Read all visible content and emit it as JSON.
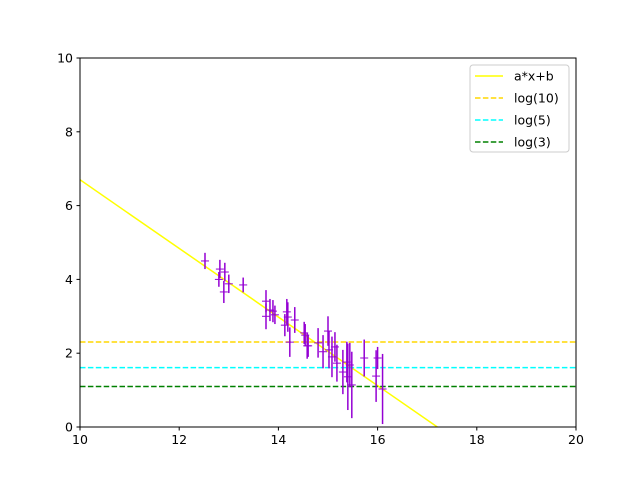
{
  "chart_data": {
    "type": "scatter",
    "title": "",
    "xlabel": "",
    "ylabel": "",
    "xlim": [
      10,
      20
    ],
    "ylim": [
      0,
      10
    ],
    "xticks": [
      "10",
      "12",
      "14",
      "16",
      "18",
      "20"
    ],
    "yticks": [
      "0",
      "2",
      "4",
      "6",
      "8",
      "10"
    ],
    "grid": false,
    "legend_position": "top-right",
    "lines": [
      {
        "name": "a*x+b",
        "kind": "linear",
        "a": -0.93,
        "b": 16.0,
        "color": "#ffff00",
        "style": "solid"
      },
      {
        "name": "log(10)",
        "kind": "hline",
        "y": 2.303,
        "color": "#ffd700",
        "style": "dashed"
      },
      {
        "name": "log(5)",
        "kind": "hline",
        "y": 1.609,
        "color": "#00ffff",
        "style": "dashed"
      },
      {
        "name": "log(3)",
        "kind": "hline",
        "y": 1.099,
        "color": "#008000",
        "style": "dashed"
      }
    ],
    "points": {
      "color": "#9400d3",
      "data": [
        [
          12.52,
          4.5,
          0.22
        ],
        [
          12.82,
          4.28,
          0.25
        ],
        [
          12.8,
          4.0,
          0.2
        ],
        [
          12.92,
          4.2,
          0.25
        ],
        [
          12.9,
          3.66,
          0.3
        ],
        [
          13.0,
          3.88,
          0.25
        ],
        [
          13.29,
          3.85,
          0.2
        ],
        [
          13.75,
          3.41,
          0.3
        ],
        [
          13.75,
          3.0,
          0.35
        ],
        [
          13.83,
          3.17,
          0.3
        ],
        [
          13.89,
          3.14,
          0.3
        ],
        [
          13.93,
          3.04,
          0.25
        ],
        [
          14.17,
          3.12,
          0.35
        ],
        [
          14.13,
          2.76,
          0.3
        ],
        [
          14.19,
          2.98,
          0.4
        ],
        [
          14.23,
          2.3,
          0.4
        ],
        [
          14.33,
          2.9,
          0.35
        ],
        [
          14.54,
          2.49,
          0.3
        ],
        [
          14.58,
          2.2,
          0.35
        ],
        [
          14.52,
          2.55,
          0.3
        ],
        [
          14.6,
          2.2,
          0.3
        ],
        [
          14.8,
          2.28,
          0.4
        ],
        [
          14.9,
          2.04,
          0.45
        ],
        [
          15.0,
          2.6,
          0.4
        ],
        [
          15.02,
          2.09,
          0.5
        ],
        [
          15.08,
          1.9,
          0.55
        ],
        [
          15.14,
          2.17,
          0.4
        ],
        [
          15.18,
          1.73,
          0.5
        ],
        [
          15.3,
          1.49,
          0.6
        ],
        [
          15.38,
          1.76,
          0.55
        ],
        [
          15.4,
          1.36,
          0.9
        ],
        [
          15.44,
          1.68,
          0.6
        ],
        [
          15.48,
          1.14,
          0.9
        ],
        [
          15.73,
          1.87,
          0.5
        ],
        [
          15.97,
          1.38,
          0.7
        ],
        [
          16.0,
          1.87,
          0.3
        ],
        [
          16.1,
          1.03,
          0.95
        ]
      ]
    }
  }
}
